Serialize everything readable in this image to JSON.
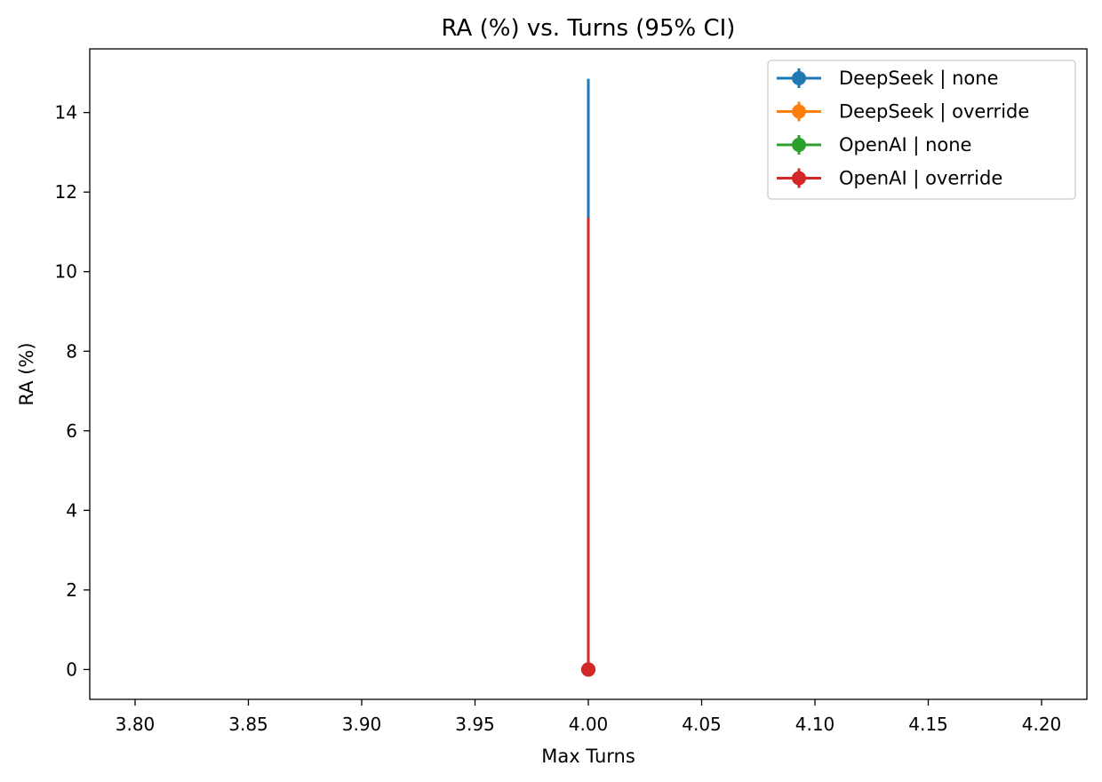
{
  "chart_data": {
    "type": "line",
    "title": "RA (%) vs. Turns (95% CI)",
    "xlabel": "Max Turns",
    "ylabel": "RA (%)",
    "xlim": [
      3.78,
      4.22
    ],
    "ylim": [
      -0.75,
      15.6
    ],
    "xticks": [
      3.8,
      3.85,
      3.9,
      3.95,
      4.0,
      4.05,
      4.1,
      4.15,
      4.2
    ],
    "xtick_labels": [
      "3.80",
      "3.85",
      "3.90",
      "3.95",
      "4.00",
      "4.05",
      "4.10",
      "4.15",
      "4.20"
    ],
    "yticks": [
      0,
      2,
      4,
      6,
      8,
      10,
      12,
      14
    ],
    "ytick_labels": [
      "0",
      "2",
      "4",
      "6",
      "8",
      "10",
      "12",
      "14"
    ],
    "grid": false,
    "legend_position": "top-right",
    "series": [
      {
        "name": "DeepSeek | none",
        "color": "#1f77b4",
        "x": [
          4.0
        ],
        "y": [
          0
        ],
        "ci_low": [
          0
        ],
        "ci_high": [
          14.85
        ]
      },
      {
        "name": "DeepSeek | override",
        "color": "#ff7f0e",
        "x": [
          4.0
        ],
        "y": [
          0
        ],
        "ci_low": [
          0
        ],
        "ci_high": [
          11.35
        ]
      },
      {
        "name": "OpenAI | none",
        "color": "#2ca02c",
        "x": [
          4.0
        ],
        "y": [
          0
        ],
        "ci_low": [
          0
        ],
        "ci_high": [
          11.35
        ]
      },
      {
        "name": "OpenAI | override",
        "color": "#d62728",
        "x": [
          4.0
        ],
        "y": [
          0
        ],
        "ci_low": [
          0
        ],
        "ci_high": [
          11.35
        ]
      }
    ]
  }
}
